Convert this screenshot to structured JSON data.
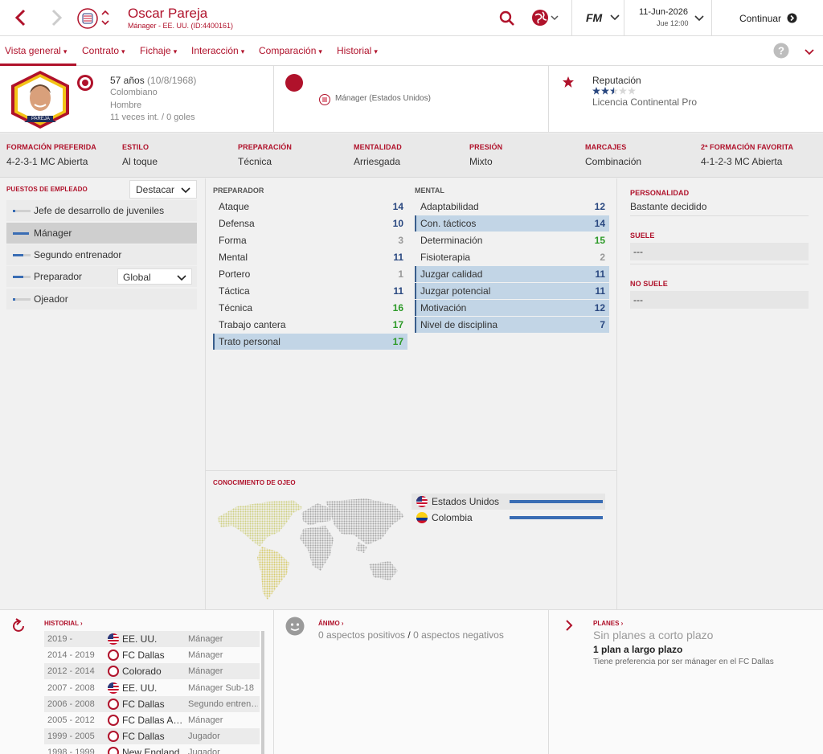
{
  "header": {
    "name": "Oscar Pareja",
    "subtitle": "Mánager - EE. UU. (ID:4400161)",
    "date": "11-Jun-2026",
    "day_time": "Jue 12:00",
    "continue_label": "Continuar",
    "fm_logo": "FM"
  },
  "nav": {
    "items": [
      "Vista general",
      "Contrato",
      "Fichaje",
      "Interacción",
      "Comparación",
      "Historial"
    ]
  },
  "profile": {
    "age": "57 años",
    "dob": "(10/8/1968)",
    "nationality": "Colombiano",
    "gender": "Hombre",
    "caps": "11 veces int. / 0 goles",
    "photo_label": "PAREJA",
    "role_label": "Mánager (Estados Unidos)",
    "reputation_label": "Reputación",
    "reputation_stars": 2.5,
    "license": "Licencia Continental Pro"
  },
  "style": {
    "labels": [
      "FORMACIÓN PREFERIDA",
      "ESTILO",
      "PREPARACIÓN",
      "MENTALIDAD",
      "PRESIÓN",
      "MARCAJES",
      "2ª FORMACIÓN FAVORITA"
    ],
    "values": [
      "4-2-3-1 MC Abierta",
      "Al toque",
      "Técnica",
      "Arriesgada",
      "Mixto",
      "Combinación",
      "4-1-2-3 MC Abierta"
    ]
  },
  "staff_positions": {
    "title": "PUESTOS DE EMPLEADO",
    "dropdown": "Destacar",
    "items": [
      {
        "label": "Jefe de desarrollo de juveniles",
        "level": 0.15
      },
      {
        "label": "Mánager",
        "level": 0.9
      },
      {
        "label": "Segundo entrenador",
        "level": 0.6
      },
      {
        "label": "Preparador",
        "level": 0.6
      },
      {
        "label": "Ojeador",
        "level": 0.15
      }
    ],
    "preparador_select": "Global"
  },
  "coach_attrs": {
    "title": "PREPARADOR",
    "rows": [
      {
        "name": "Ataque",
        "value": "14"
      },
      {
        "name": "Defensa",
        "value": "10"
      },
      {
        "name": "Forma",
        "value": "3"
      },
      {
        "name": "Mental",
        "value": "11"
      },
      {
        "name": "Portero",
        "value": "1"
      },
      {
        "name": "Táctica",
        "value": "11"
      },
      {
        "name": "Técnica",
        "value": "16"
      },
      {
        "name": "Trabajo cantera",
        "value": "17"
      },
      {
        "name": "Trato personal",
        "value": "17"
      }
    ]
  },
  "mental_attrs": {
    "title": "MENTAL",
    "rows": [
      {
        "name": "Adaptabilidad",
        "value": "12"
      },
      {
        "name": "Con. tácticos",
        "value": "14"
      },
      {
        "name": "Determinación",
        "value": "15"
      },
      {
        "name": "Fisioterapia",
        "value": "2"
      },
      {
        "name": "Juzgar calidad",
        "value": "11"
      },
      {
        "name": "Juzgar potencial",
        "value": "11"
      },
      {
        "name": "Motivación",
        "value": "12"
      },
      {
        "name": "Nivel de disciplina",
        "value": "7"
      }
    ]
  },
  "personality": {
    "title": "PERSONALIDAD",
    "value": "Bastante decidido",
    "suele_title": "SUELE",
    "suele_value": "---",
    "nosuele_title": "NO SUELE",
    "nosuele_value": "---"
  },
  "scouting": {
    "title": "CONOCIMIENTO DE OJEO",
    "countries": [
      {
        "name": "Estados Unidos",
        "level": 1.0
      },
      {
        "name": "Colombia",
        "level": 1.0
      }
    ]
  },
  "history": {
    "title": "HISTORIAL",
    "rows": [
      {
        "years": "2019 -",
        "club": "EE. UU.",
        "role": "Mánager",
        "icon": "us-flag-icon"
      },
      {
        "years": "2014 - 2019",
        "club": "FC Dallas",
        "role": "Mánager",
        "icon": "fc-dallas-crest-icon"
      },
      {
        "years": "2012 - 2014",
        "club": "Colorado",
        "role": "Mánager",
        "icon": "colorado-crest-icon"
      },
      {
        "years": "2007 - 2008",
        "club": "EE. UU.",
        "role": "Mánager Sub-18",
        "icon": "us-flag-icon"
      },
      {
        "years": "2006 - 2008",
        "club": "FC Dallas",
        "role": "Segundo entren…",
        "icon": "fc-dallas-crest-icon"
      },
      {
        "years": "2005 - 2012",
        "club": "FC Dallas A…",
        "role": "Mánager",
        "icon": "fc-dallas-crest-icon"
      },
      {
        "years": "1999 - 2005",
        "club": "FC Dallas",
        "role": "Jugador",
        "icon": "fc-dallas-crest-icon"
      },
      {
        "years": "1998 - 1999",
        "club": "New England",
        "role": "Jugador",
        "icon": "new-england-crest-icon"
      }
    ]
  },
  "mood": {
    "title": "ÁNIMO",
    "positive": "0 aspectos positivos",
    "sep": "/",
    "negative": "0 aspectos negativos"
  },
  "plans": {
    "title": "PLANES",
    "short": "Sin planes a corto plazo",
    "long": "1 plan a largo plazo",
    "note": "Tiene preferencia por ser mánager en el FC Dallas"
  },
  "colors": {
    "accent": "#b0122b",
    "bar": "#3a6db4",
    "highlight": "#c2d5e6"
  }
}
